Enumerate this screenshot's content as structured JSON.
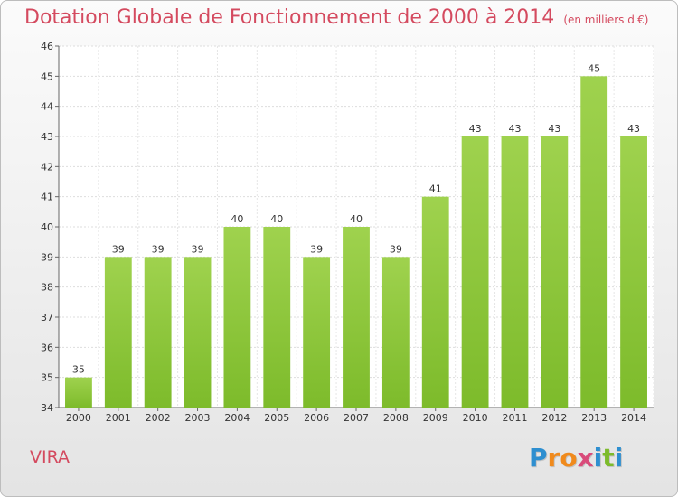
{
  "chart_data": {
    "type": "bar",
    "title": "Dotation Globale de Fonctionnement de 2000 à 2014",
    "subtitle": "(en milliers d'€)",
    "categories": [
      "2000",
      "2001",
      "2002",
      "2003",
      "2004",
      "2005",
      "2006",
      "2007",
      "2008",
      "2009",
      "2010",
      "2011",
      "2012",
      "2013",
      "2014"
    ],
    "values": [
      35,
      39,
      39,
      39,
      40,
      40,
      39,
      40,
      39,
      41,
      43,
      43,
      43,
      45,
      43
    ],
    "xlabel": "",
    "ylabel": "",
    "ylim": [
      34,
      46
    ],
    "yticks": [
      34,
      35,
      36,
      37,
      38,
      39,
      40,
      41,
      42,
      43,
      44,
      45,
      46
    ],
    "grid": true,
    "bar_color": "#7dbb2b",
    "bar_color_light": "#9fd24e"
  },
  "location": "VIRA",
  "logo": {
    "letters": [
      "P",
      "r",
      "o",
      "x",
      "i",
      "t",
      "i"
    ],
    "colors": [
      "#2e8fd0",
      "#f08a1c",
      "#f08a1c",
      "#d94b7a",
      "#2e8fd0",
      "#7dbb2b",
      "#2e8fd0"
    ]
  }
}
